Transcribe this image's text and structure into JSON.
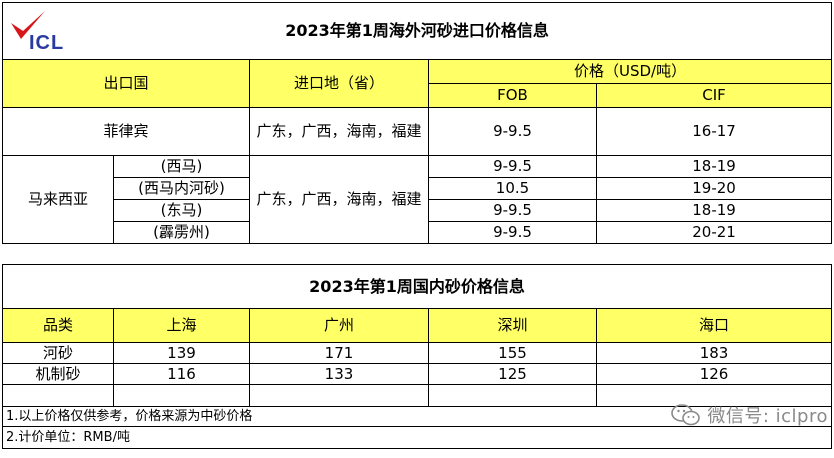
{
  "logo": {
    "text": "ICL"
  },
  "import_table": {
    "title": "2023年第1周海外河砂进口价格信息",
    "headers": {
      "exporter": "出口国",
      "import_region": "进口地（省）",
      "price": "价格（USD/吨）",
      "fob": "FOB",
      "cif": "CIF"
    },
    "philippines": {
      "country": "菲律宾",
      "region": "广东，广西，海南，福建",
      "fob": "9-9.5",
      "cif": "16-17"
    },
    "malaysia": {
      "country": "马来西亚",
      "region": "广东，广西，海南，福建",
      "rows": [
        {
          "sub": "(西马)",
          "fob": "9-9.5",
          "cif": "18-19"
        },
        {
          "sub": "(西马内河砂)",
          "fob": "10.5",
          "cif": "19-20"
        },
        {
          "sub": "(东马)",
          "fob": "9-9.5",
          "cif": "18-19"
        },
        {
          "sub": "(霹雳州)",
          "fob": "9-9.5",
          "cif": "20-21"
        }
      ]
    }
  },
  "domestic_table": {
    "title": "2023年第1周国内砂价格信息",
    "headers": [
      "品类",
      "上海",
      "广州",
      "深圳",
      "海口"
    ],
    "rows": [
      [
        "河砂",
        "139",
        "171",
        "155",
        "183"
      ],
      [
        "机制砂",
        "116",
        "133",
        "125",
        "126"
      ]
    ],
    "notes": [
      "1.以上价格仅供参考，价格来源为中砂价格",
      "2.计价单位：RMB/吨"
    ]
  },
  "watermark": {
    "text": "微信号: iclpro",
    "icon": "wechat-icon"
  }
}
